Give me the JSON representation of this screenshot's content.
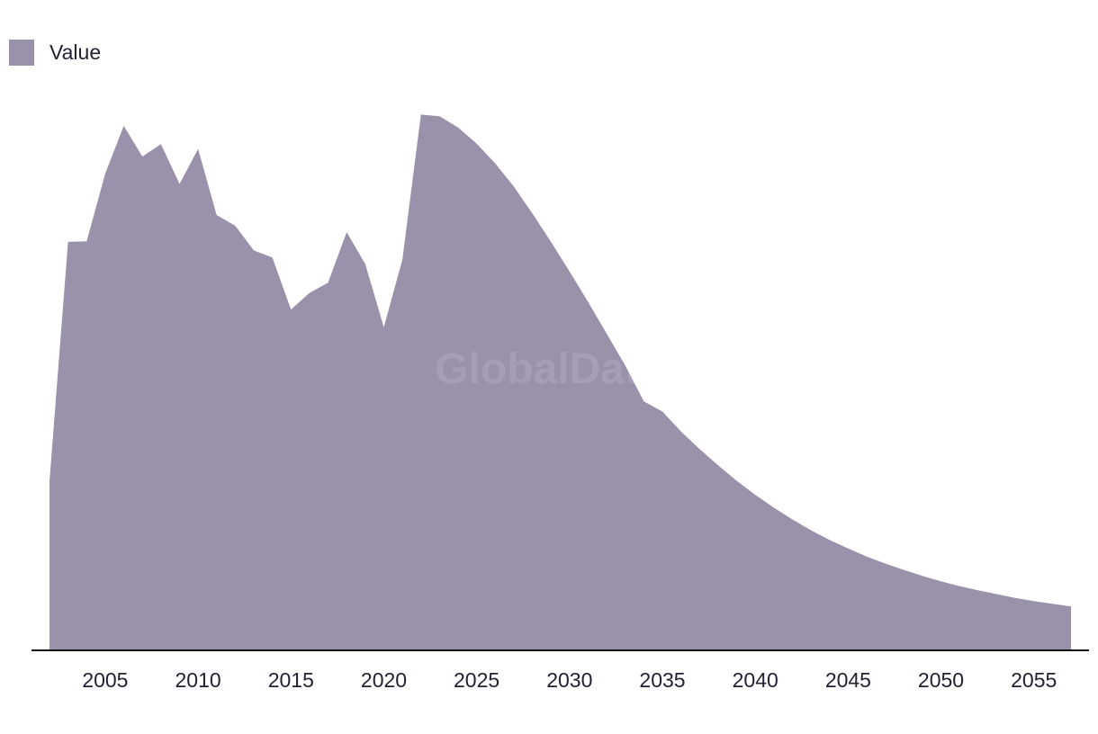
{
  "watermark": "GlobalData",
  "colors": {
    "area": "#9a91aa",
    "axis": "#111111",
    "text": "#222233"
  },
  "chart_data": {
    "type": "area",
    "title": "",
    "xlabel": "",
    "ylabel": "",
    "legend": {
      "position": "top-left",
      "entries": [
        "Value"
      ]
    },
    "grid": false,
    "xlim": [
      2002,
      2057
    ],
    "ylim": [
      0,
      100
    ],
    "x_ticks": [
      2005,
      2010,
      2015,
      2020,
      2025,
      2030,
      2035,
      2040,
      2045,
      2050,
      2055
    ],
    "series": [
      {
        "name": "Value",
        "x": [
          2002,
          2003,
          2004,
          2005,
          2006,
          2007,
          2008,
          2009,
          2010,
          2011,
          2012,
          2013,
          2014,
          2015,
          2016,
          2017,
          2018,
          2019,
          2020,
          2021,
          2022,
          2023,
          2024,
          2025,
          2026,
          2027,
          2028,
          2029,
          2030,
          2031,
          2032,
          2033,
          2034,
          2035,
          2036,
          2037,
          2038,
          2039,
          2040,
          2041,
          2042,
          2043,
          2044,
          2045,
          2046,
          2047,
          2048,
          2049,
          2050,
          2051,
          2052,
          2053,
          2054,
          2055,
          2056,
          2057
        ],
        "values": [
          31.3,
          75.9,
          76.0,
          88.6,
          97.5,
          91.8,
          94.1,
          86.7,
          93.2,
          80.9,
          78.9,
          74.3,
          73.0,
          63.3,
          66.4,
          68.3,
          77.7,
          71.8,
          60.0,
          72.6,
          99.6,
          99.3,
          97.2,
          94.2,
          90.5,
          86.2,
          81.2,
          75.9,
          70.4,
          64.7,
          58.8,
          52.9,
          46.2,
          44.3,
          40.6,
          37.3,
          34.3,
          31.4,
          28.8,
          26.4,
          24.2,
          22.2,
          20.4,
          18.8,
          17.3,
          16.0,
          14.8,
          13.7,
          12.7,
          11.8,
          11.0,
          10.3,
          9.6,
          9.0,
          8.5,
          8.0
        ]
      }
    ]
  }
}
